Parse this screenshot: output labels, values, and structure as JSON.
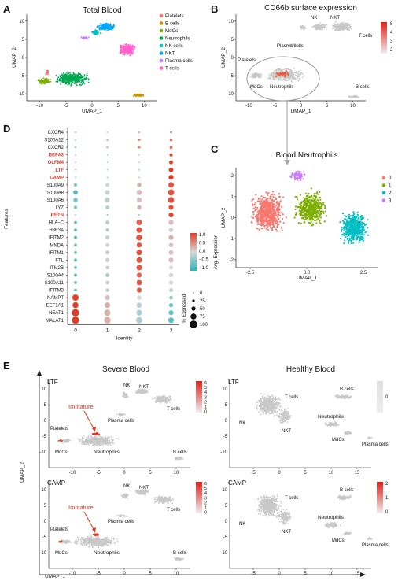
{
  "panelA": {
    "letter": "A",
    "title": "Total Blood",
    "xlabel": "UMAP_1",
    "ylabel": "UMAP_2",
    "xticks": [
      "-10",
      "-5",
      "0",
      "5",
      "10"
    ],
    "yticks": [
      "10",
      "5",
      "0",
      "-5",
      "-10"
    ],
    "legend": [
      {
        "label": "Platelets",
        "color": "#f8766d"
      },
      {
        "label": "B cells",
        "color": "#cd9600"
      },
      {
        "label": "MdCs",
        "color": "#7cae00"
      },
      {
        "label": "Neutrophils",
        "color": "#00a651"
      },
      {
        "label": "NK cells",
        "color": "#00bfc4"
      },
      {
        "label": "NKT",
        "color": "#00a9ff"
      },
      {
        "label": "Plasma cells",
        "color": "#c77cff"
      },
      {
        "label": "T cells",
        "color": "#ff61cc"
      }
    ]
  },
  "panelB": {
    "letter": "B",
    "title": "CD66b surface expression",
    "xlabel": "UMAP_1",
    "ylabel": "UMAP_2",
    "xticks": [
      "-10",
      "-5",
      "0",
      "5",
      "10"
    ],
    "yticks": [
      "10",
      "5",
      "0",
      "-5",
      "-10"
    ],
    "scale": [
      "5",
      "4",
      "3",
      "2"
    ],
    "labels": {
      "nk": "NK",
      "nkt": "NKT",
      "tcells": "T cells",
      "plasma": "Plasma cells",
      "platelets": "Platelets",
      "mdcs": "MdCs",
      "neutrophils": "Neutrophils",
      "bcells": "B cells"
    }
  },
  "panelC": {
    "letter": "C",
    "title": "Blood Neutrophils",
    "xlabel": "UMAP_1",
    "ylabel": "UMAP_2",
    "xticks": [
      "-2.5",
      "0.0",
      "2.5"
    ],
    "yticks": [
      "2",
      "1",
      "0",
      "-1",
      "-2"
    ],
    "legend": [
      {
        "label": "0",
        "color": "#f8766d"
      },
      {
        "label": "1",
        "color": "#7cae00"
      },
      {
        "label": "2",
        "color": "#00bfc4"
      },
      {
        "label": "3",
        "color": "#c77cff"
      }
    ]
  },
  "panelD": {
    "letter": "D",
    "ylabel": "Features",
    "xlabel": "Identity",
    "identities": [
      "0",
      "1",
      "2",
      "3"
    ],
    "genes": [
      {
        "name": "CXCR4",
        "red": false
      },
      {
        "name": "S100A12",
        "red": false
      },
      {
        "name": "CXCR2",
        "red": false
      },
      {
        "name": "DEFA3",
        "red": true
      },
      {
        "name": "OLFM4",
        "red": true
      },
      {
        "name": "LTF",
        "red": true
      },
      {
        "name": "CAMP",
        "red": true
      },
      {
        "name": "S100A9",
        "red": false
      },
      {
        "name": "S100A8",
        "red": false
      },
      {
        "name": "S100A6",
        "red": false
      },
      {
        "name": "LYZ",
        "red": false
      },
      {
        "name": "RETN",
        "red": true
      },
      {
        "name": "HLA–C",
        "red": false
      },
      {
        "name": "H3F3A",
        "red": false
      },
      {
        "name": "IFITM2",
        "red": false
      },
      {
        "name": "MNDA",
        "red": false
      },
      {
        "name": "IFITM1",
        "red": false
      },
      {
        "name": "FTL",
        "red": false
      },
      {
        "name": "ITM2B",
        "red": false
      },
      {
        "name": "S100A4",
        "red": false
      },
      {
        "name": "S100A11",
        "red": false
      },
      {
        "name": "IFITM3",
        "red": false
      },
      {
        "name": "NAMPT",
        "red": false
      },
      {
        "name": "EEF1A1",
        "red": false
      },
      {
        "name": "NEAT1",
        "red": false
      },
      {
        "name": "MALAT1",
        "red": false
      }
    ],
    "color_legend": {
      "title": "Avg. Expression",
      "ticks": [
        "1.0",
        "0.5",
        "0.0",
        "−0.5",
        "−1.0"
      ]
    },
    "size_legend": {
      "title": "% Expressed",
      "ticks": [
        "0",
        "25",
        "50",
        "75",
        "100"
      ]
    }
  },
  "panelE": {
    "letter": "E",
    "severe_title": "Severe Blood",
    "healthy_title": "Healthy Blood",
    "xlabel": "UMAP_1",
    "ylabel": "UMAP_2",
    "severe_xticks": [
      "-10",
      "-5",
      "0",
      "5",
      "10"
    ],
    "healthy_xticks": [
      "-5",
      "0",
      "5",
      "10",
      "15"
    ],
    "yticks": [
      "10",
      "5",
      "0",
      "-5",
      "-10"
    ],
    "severe_rows": [
      {
        "gene": "LTF",
        "scale": [
          "6",
          "5",
          "4",
          "3",
          "2",
          "1",
          "0"
        ]
      },
      {
        "gene": "CAMP",
        "scale": [
          "6",
          "5",
          "4",
          "3",
          "2",
          "1",
          "0"
        ]
      }
    ],
    "healthy_rows": [
      {
        "gene": "LTF",
        "scale": [
          "0"
        ]
      },
      {
        "gene": "CAMP",
        "scale": [
          "2",
          "1",
          "0"
        ]
      }
    ],
    "severe_labels": {
      "immature": "Immature",
      "nk": "NK",
      "nkt": "NKT",
      "tcells": "T cells",
      "plasma": "Plasma cells",
      "platelets": "Platelets",
      "mdcs": "MdCs",
      "neutrophils": "Neutrophils",
      "bcells": "B cells"
    },
    "healthy_labels": {
      "tcells": "T cells",
      "bcells": "B cells",
      "nk": "NK",
      "nkt": "NKT",
      "neutrophils": "Neutrophils",
      "mdcs": "MdCs",
      "plasma": "Plasma cells"
    }
  }
}
